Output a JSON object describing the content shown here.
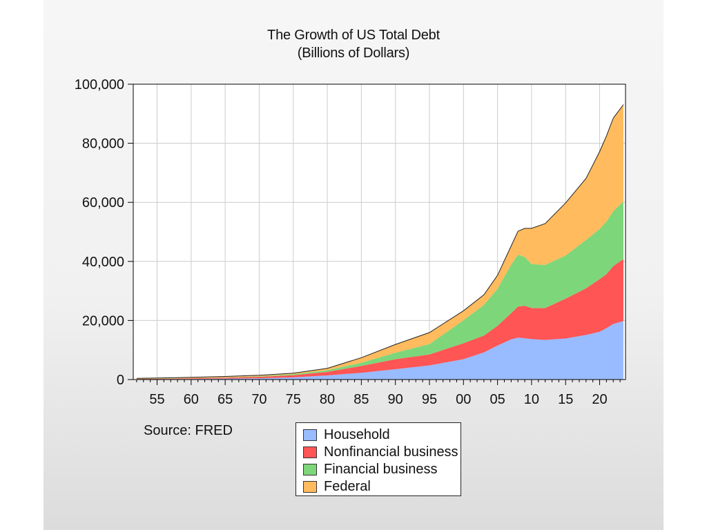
{
  "colors": {
    "household": "#99bbff",
    "nonfinancial": "#ff5555",
    "financial": "#7ed67a",
    "federal": "#ffbb5e",
    "frame": "#000000",
    "grid": "#cccccc"
  },
  "chart_data": {
    "type": "area",
    "stacked": true,
    "title": "The Growth of US Total Debt",
    "subtitle": "(Billions of Dollars)",
    "xlabel": "",
    "ylabel": "",
    "x": [
      1952,
      1955,
      1960,
      1965,
      1970,
      1975,
      1980,
      1985,
      1990,
      1995,
      2000,
      2003,
      2005,
      2007,
      2008,
      2009,
      2010,
      2012,
      2015,
      2018,
      2020,
      2021,
      2022,
      2023.5
    ],
    "xlim": [
      1951.5,
      2023.8
    ],
    "xticks": [
      1955,
      1960,
      1965,
      1970,
      1975,
      1980,
      1985,
      1990,
      1995,
      2000,
      2005,
      2010,
      2015,
      2020
    ],
    "xtick_labels": [
      "55",
      "60",
      "65",
      "70",
      "75",
      "80",
      "85",
      "90",
      "95",
      "00",
      "05",
      "10",
      "15",
      "20"
    ],
    "ylim": [
      0,
      100000
    ],
    "yticks": [
      0,
      20000,
      40000,
      60000,
      80000,
      100000
    ],
    "ytick_labels": [
      "0",
      "20,000",
      "40,000",
      "60,000",
      "80,000",
      "100,000"
    ],
    "grid": true,
    "legend_position": "bottom",
    "series": [
      {
        "name": "Household",
        "color_key": "household",
        "values": [
          80,
          130,
          210,
          330,
          450,
          730,
          1400,
          2300,
          3500,
          4800,
          6900,
          9200,
          11500,
          13600,
          14200,
          14000,
          13700,
          13400,
          13900,
          15100,
          16200,
          17400,
          18800,
          19800
        ]
      },
      {
        "name": "Nonfinancial business",
        "color_key": "nonfinancial",
        "values": [
          80,
          110,
          180,
          300,
          480,
          750,
          1200,
          2300,
          3400,
          3700,
          5400,
          5700,
          6700,
          8900,
          10500,
          11000,
          10500,
          10800,
          13500,
          15800,
          17800,
          18300,
          19600,
          21000
        ]
      },
      {
        "name": "Financial business",
        "color_key": "financial",
        "values": [
          20,
          30,
          60,
          100,
          180,
          300,
          550,
          1100,
          2200,
          3500,
          7800,
          10400,
          12600,
          16400,
          17600,
          16500,
          14900,
          14600,
          14600,
          16400,
          17000,
          17800,
          18600,
          19500
        ]
      },
      {
        "name": "Federal",
        "color_key": "federal",
        "values": [
          240,
          260,
          290,
          320,
          350,
          400,
          650,
          1700,
          2800,
          3900,
          3200,
          3400,
          4500,
          6300,
          7900,
          9700,
          12100,
          14000,
          17800,
          20800,
          26200,
          29000,
          31500,
          32800
        ]
      }
    ]
  },
  "source": "Source:  FRED"
}
